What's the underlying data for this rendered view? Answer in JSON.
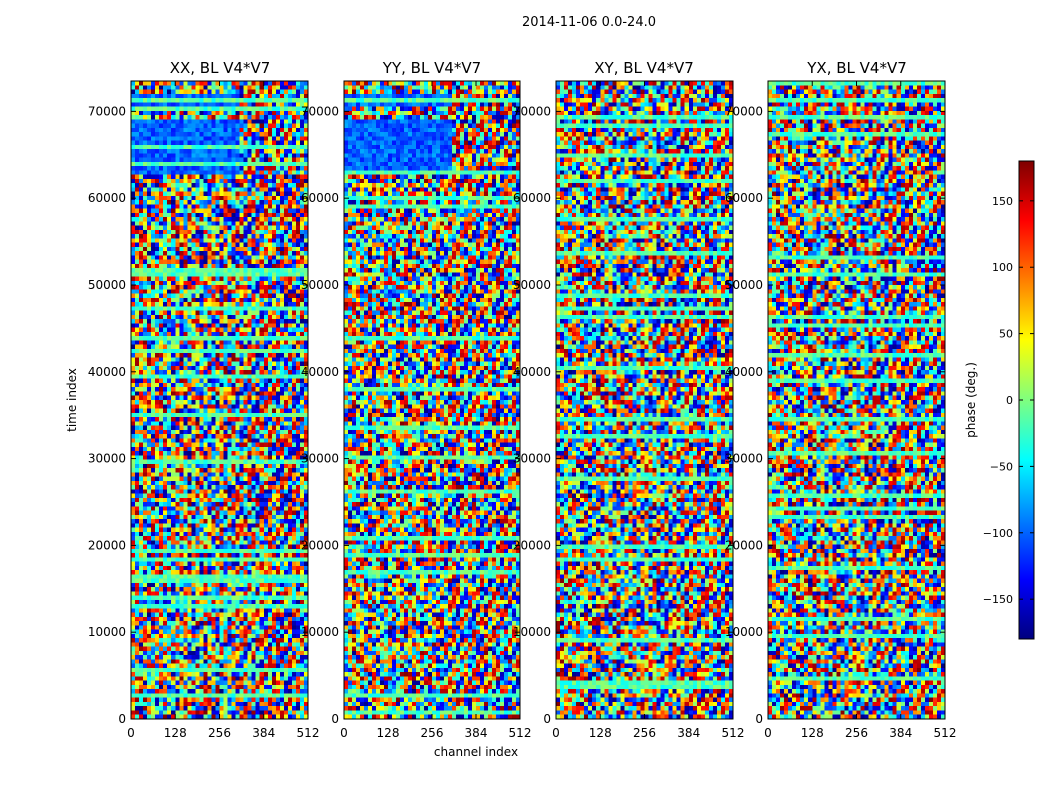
{
  "figure": {
    "suptitle": "2014-11-06 0.0-24.0"
  },
  "chart_data": {
    "type": "heatmap",
    "title": "2014-11-06 0.0-24.0",
    "xlabel": "channel index",
    "ylabel": "time index",
    "xlim": [
      0,
      512
    ],
    "ylim": [
      0,
      73500
    ],
    "x_ticks": [
      0,
      128,
      256,
      384,
      512
    ],
    "y_ticks": [
      0,
      10000,
      20000,
      30000,
      40000,
      50000,
      60000,
      70000
    ],
    "panels": [
      {
        "name": "xx",
        "title": "XX, BL V4*V7"
      },
      {
        "name": "yy",
        "title": "YY, BL V4*V7"
      },
      {
        "name": "xy",
        "title": "XY, BL V4*V7"
      },
      {
        "name": "yx",
        "title": "YX, BL V4*V7"
      }
    ],
    "colorbar": {
      "label": "phase (deg.)",
      "range": [
        -180,
        180
      ],
      "ticks": [
        -150,
        -100,
        -50,
        0,
        50,
        100,
        150
      ],
      "colormap": "jet",
      "colors": [
        "#00007f",
        "#0000ff",
        "#007fff",
        "#00ffff",
        "#7fff7f",
        "#ffff00",
        "#ff7f00",
        "#ff0000",
        "#7f0000"
      ]
    }
  }
}
